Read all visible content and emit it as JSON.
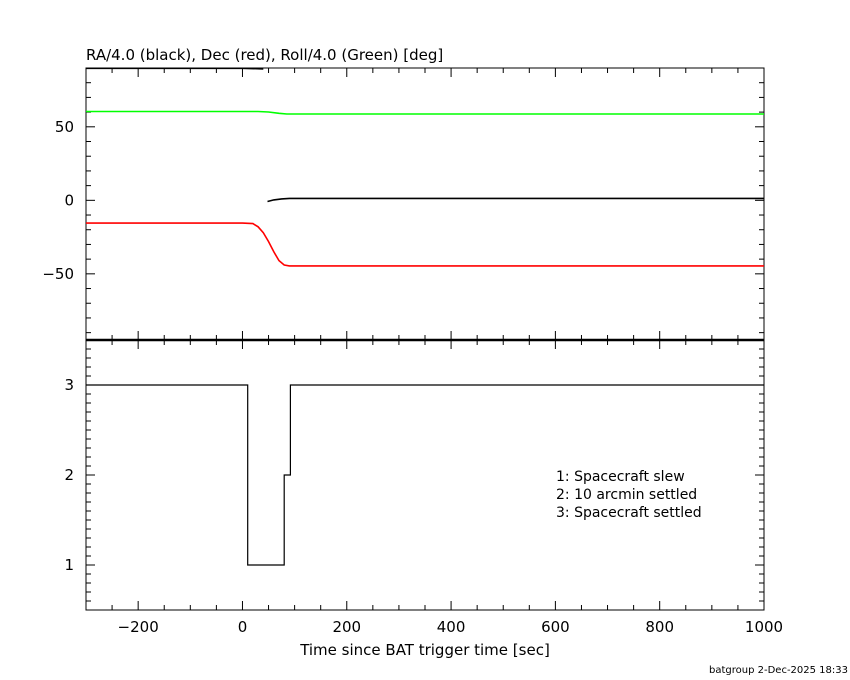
{
  "chart_data": [
    {
      "type": "line",
      "title": "RA/4.0 (black), Dec (red), Roll/4.0 (Green) [deg]",
      "xlim": [
        -300,
        1000
      ],
      "ylim": [
        -95,
        90
      ],
      "yticks": [
        -50,
        0,
        50
      ],
      "ytick_labels": [
        "−50",
        "0",
        "50"
      ],
      "grid": false,
      "series": [
        {
          "color": "#000000",
          "x": [
            -300,
            -200,
            -100,
            0,
            40
          ],
          "y": [
            89.8,
            89.8,
            89.8,
            89.8,
            89.4
          ]
        },
        {
          "color": "#000000",
          "x": [
            48,
            60,
            75,
            90,
            200,
            400,
            600,
            800,
            1000
          ],
          "y": [
            -0.8,
            0.3,
            1.0,
            1.3,
            1.3,
            1.3,
            1.3,
            1.3,
            1.3
          ]
        },
        {
          "color": "#00ff00",
          "x": [
            -300,
            0,
            30,
            50,
            70,
            85,
            100,
            200,
            400,
            600,
            800,
            1000
          ],
          "y": [
            60.4,
            60.4,
            60.4,
            60.1,
            59.2,
            58.7,
            58.7,
            58.7,
            58.7,
            58.7,
            58.7,
            58.7
          ]
        },
        {
          "color": "#ff0000",
          "x": [
            -300,
            -100,
            0,
            20,
            30,
            40,
            50,
            60,
            70,
            80,
            90,
            100,
            200,
            400,
            600,
            800,
            1000
          ],
          "y": [
            -15.5,
            -15.5,
            -15.5,
            -15.8,
            -18,
            -22,
            -28,
            -35,
            -41,
            -44,
            -44.6,
            -44.6,
            -44.6,
            -44.6,
            -44.6,
            -44.6,
            -44.6
          ]
        }
      ]
    },
    {
      "type": "line",
      "xlabel": "Time since BAT trigger time [sec]",
      "xlim": [
        -300,
        1000
      ],
      "ylim": [
        0.5,
        3.5
      ],
      "yticks": [
        1,
        2,
        3
      ],
      "ytick_labels": [
        "1",
        "2",
        "3"
      ],
      "xticks": [
        -200,
        0,
        200,
        400,
        600,
        800,
        1000
      ],
      "xtick_labels": [
        "−200",
        "0",
        "200",
        "400",
        "600",
        "800",
        "1000"
      ],
      "grid": false,
      "annotations": [
        "1: Spacecraft slew",
        "2: 10 arcmin settled",
        "3: Spacecraft settled"
      ],
      "series": [
        {
          "color": "#000000",
          "step": true,
          "x": [
            -300,
            10,
            10,
            80,
            80,
            92,
            92,
            1000
          ],
          "y": [
            3,
            3,
            1,
            1,
            2,
            2,
            3,
            3
          ]
        }
      ]
    }
  ],
  "footer": {
    "credit": "batgroup  2-Dec-2025 18:33"
  }
}
